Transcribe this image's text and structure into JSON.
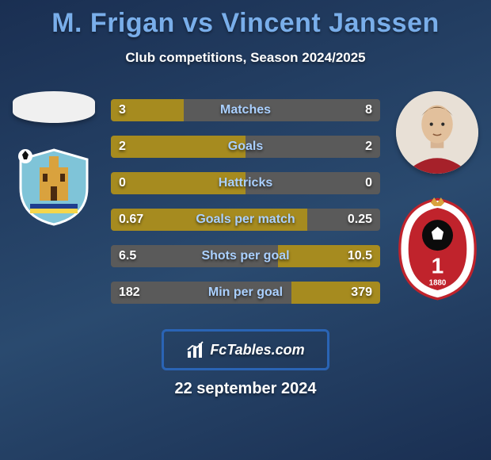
{
  "title": "M. Frigan vs Vincent Janssen",
  "subtitle": "Club competitions, Season 2024/2025",
  "date": "22 september 2024",
  "branding_text": "FcTables.com",
  "colors": {
    "title": "#79aeea",
    "label": "#aad0ff",
    "left_fill": "#a68b1f",
    "right_fill": "#5a5a5a",
    "bar_bg": "#3b3b3b",
    "branding_border": "#2a64b5"
  },
  "left_player": {
    "avatar_bg": "#f0f0f0",
    "club": {
      "shield_bg": "#7fc4d8",
      "building": "#d9a23e",
      "stripes": [
        "#1f3f8f",
        "#f5d64a"
      ]
    }
  },
  "right_player": {
    "face_bg": "#e8e0d6",
    "shirt": "#a6212a",
    "club": {
      "outer": "#ffffff",
      "inner": "#c0232c",
      "ball": "#0b0b0b",
      "number": "1",
      "year": "1880"
    }
  },
  "stats": [
    {
      "label": "Matches",
      "left_val": "3",
      "right_val": "8",
      "left_pct": 27,
      "right_pct": 73,
      "left_color": "#a68b1f",
      "right_color": "#5a5a5a"
    },
    {
      "label": "Goals",
      "left_val": "2",
      "right_val": "2",
      "left_pct": 50,
      "right_pct": 50,
      "left_color": "#a68b1f",
      "right_color": "#5a5a5a"
    },
    {
      "label": "Hattricks",
      "left_val": "0",
      "right_val": "0",
      "left_pct": 50,
      "right_pct": 50,
      "left_color": "#a68b1f",
      "right_color": "#5a5a5a"
    },
    {
      "label": "Goals per match",
      "left_val": "0.67",
      "right_val": "0.25",
      "left_pct": 73,
      "right_pct": 27,
      "left_color": "#a68b1f",
      "right_color": "#5a5a5a"
    },
    {
      "label": "Shots per goal",
      "left_val": "6.5",
      "right_val": "10.5",
      "left_pct": 62,
      "right_pct": 38,
      "left_color": "#5a5a5a",
      "right_color": "#a68b1f"
    },
    {
      "label": "Min per goal",
      "left_val": "182",
      "right_val": "379",
      "left_pct": 67,
      "right_pct": 33,
      "left_color": "#5a5a5a",
      "right_color": "#a68b1f"
    }
  ]
}
